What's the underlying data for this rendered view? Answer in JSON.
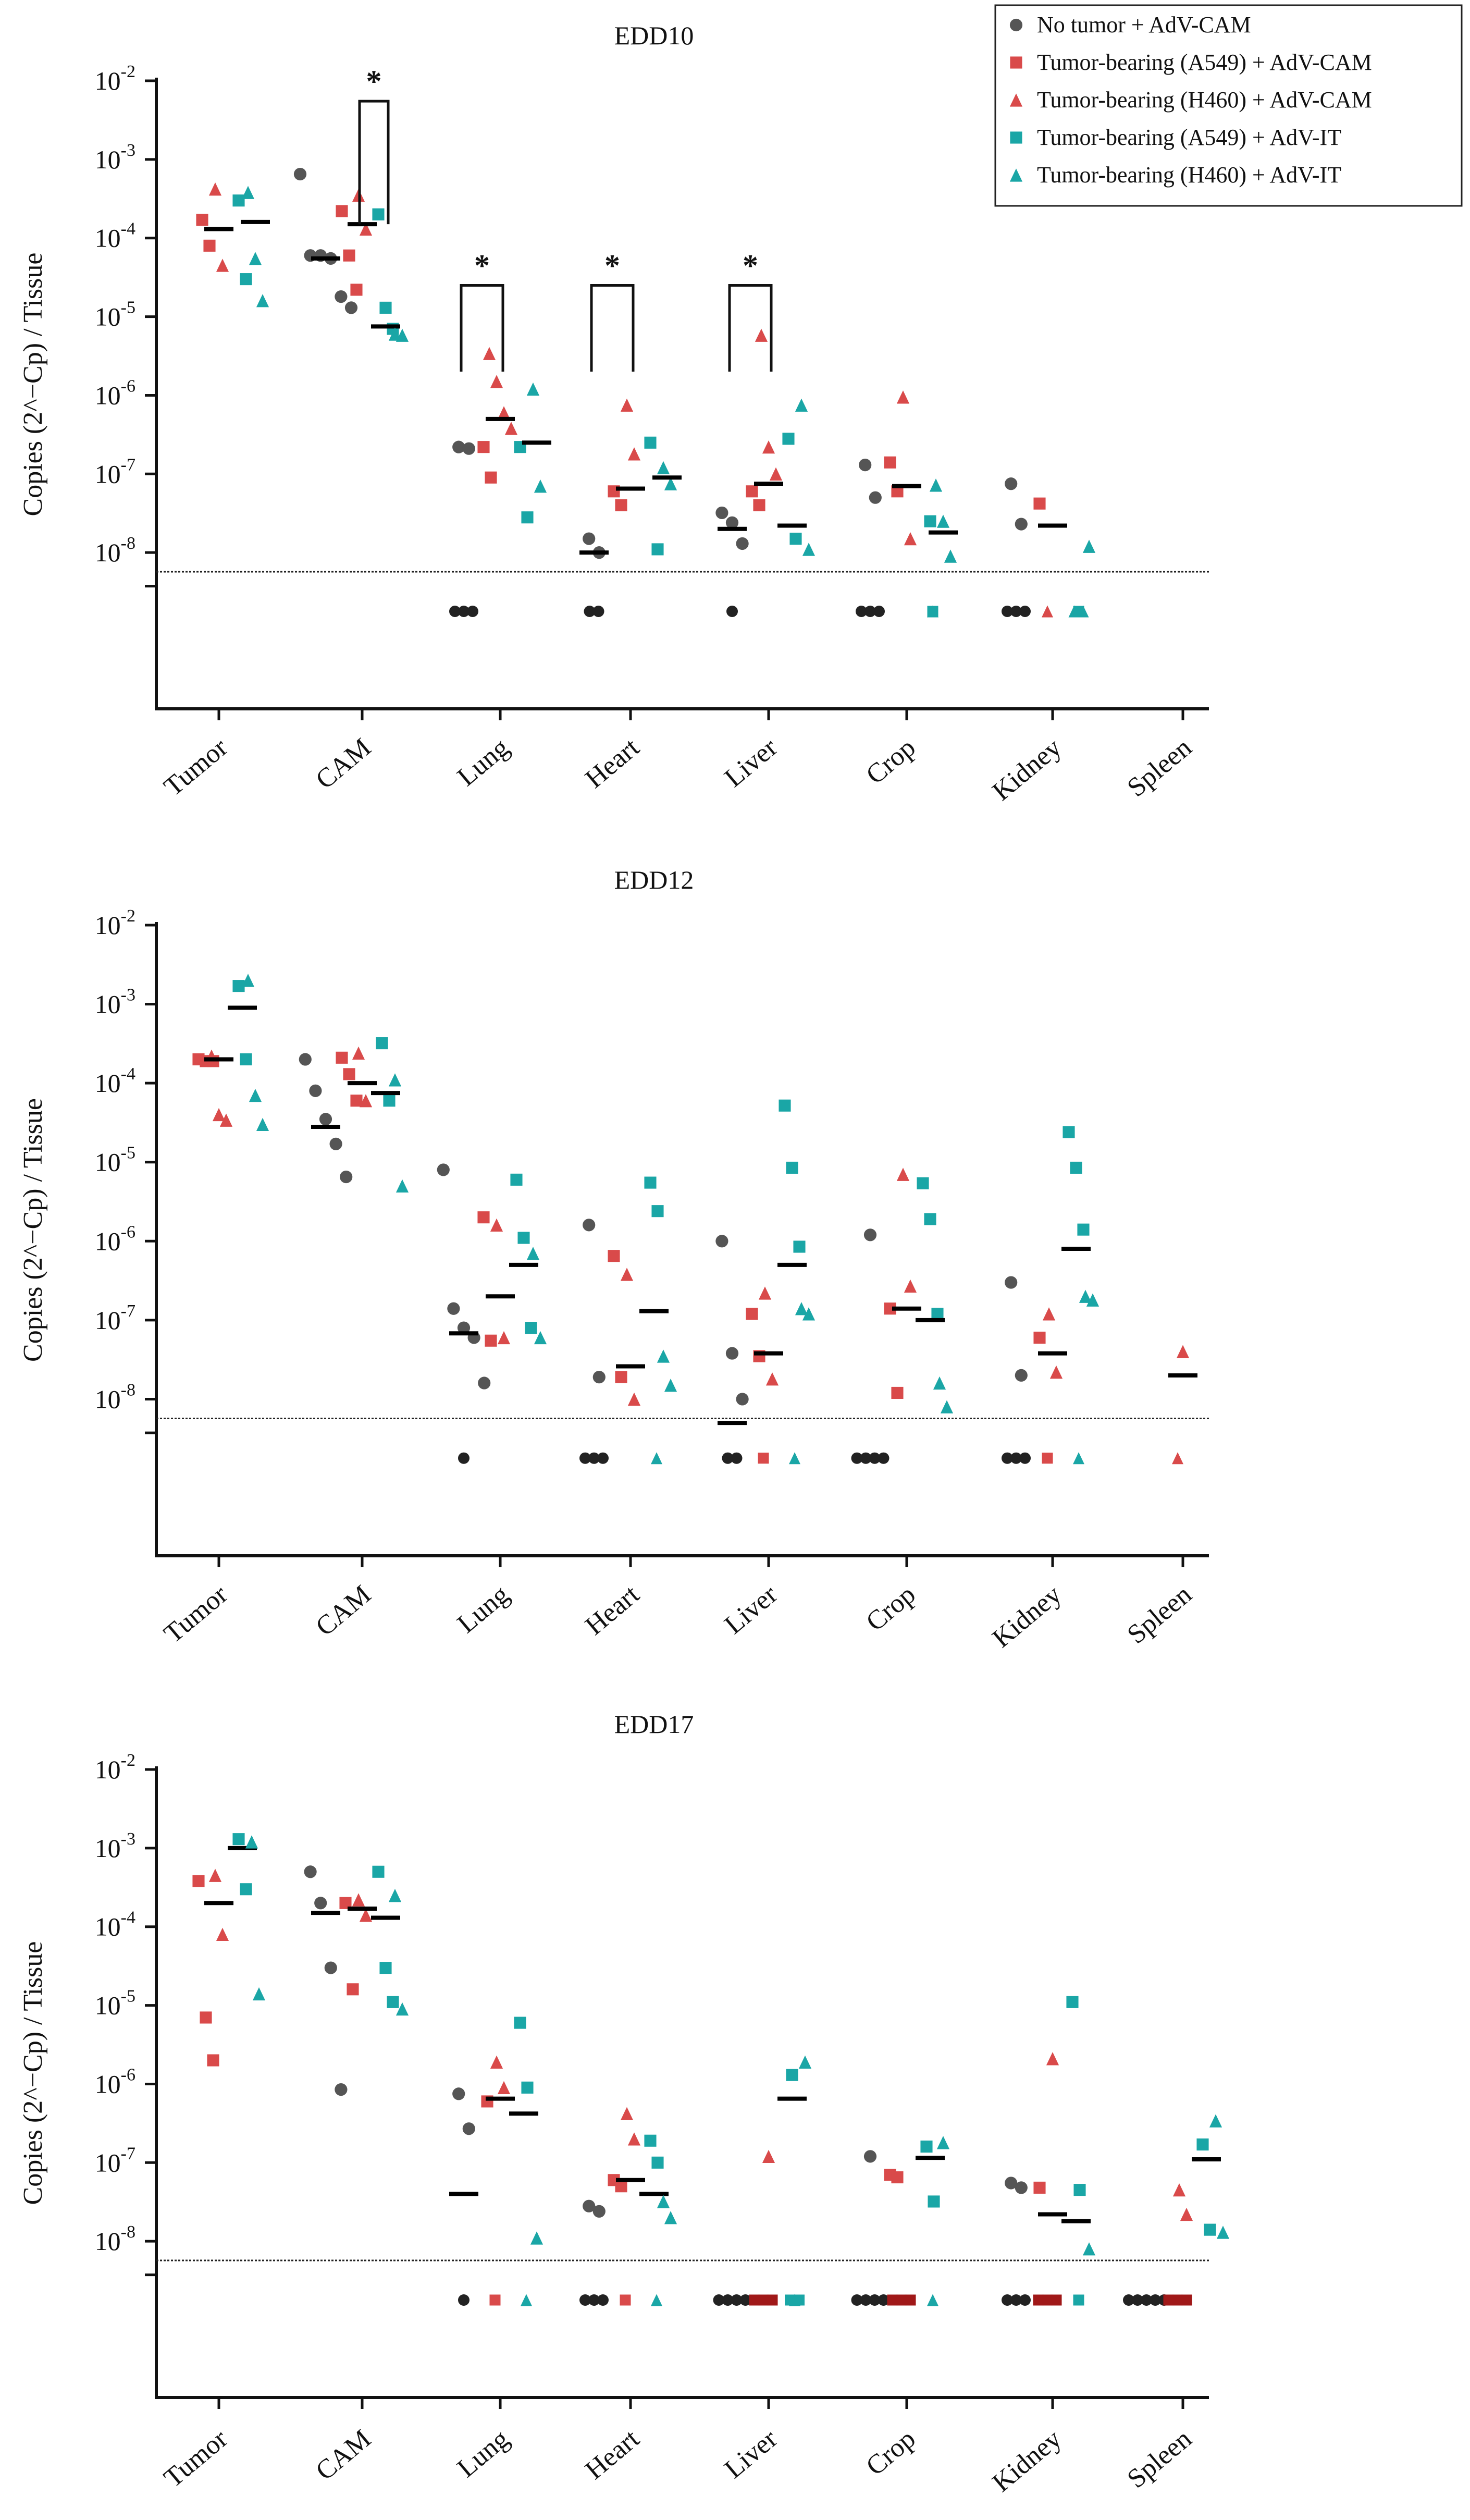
{
  "chart_data": [
    {
      "type": "scatter",
      "title": "EDD10",
      "ylabel": "Copies (2^−Cp) / Tissue",
      "yscale": "log",
      "ylim": [
        1e-09,
        0.01
      ],
      "y_tick_labels": [
        "10-2",
        "10-3",
        "10-4",
        "10-5",
        "10-6",
        "10-7",
        "10-8"
      ],
      "categories": [
        "Tumor",
        "CAM",
        "Lung",
        "Heart",
        "Liver",
        "Crop",
        "Kidney",
        "Spleen"
      ],
      "detection_limit": 5.7e-09,
      "not_detected_value": 2.5e-09,
      "series": [
        {
          "name": "No tumor + AdV-CAM",
          "key": "nt",
          "values": {
            "CAM": [
              0.00065,
              6e-05,
              6e-05,
              5.5e-05,
              1.8e-05,
              1.3e-05
            ],
            "Lung": [
              2.2e-07,
              2.1e-07
            ],
            "Heart": [
              1.5e-08,
              1e-08
            ],
            "Liver": [
              3.2e-08,
              2.4e-08,
              1.3e-08
            ],
            "Crop": [
              1.3e-07,
              5e-08
            ],
            "Kidney": [
              7.5e-08,
              2.3e-08
            ]
          },
          "nd_counts": {
            "Lung": 3,
            "Heart": 2,
            "Liver": 1,
            "Crop": 3,
            "Kidney": 3
          },
          "medians": {
            "CAM": 5.5e-05,
            "Heart": 1e-08,
            "Liver": 2e-08
          }
        },
        {
          "name": "Tumor-bearing (A549) + AdV-CAM",
          "key": "a549cam",
          "values": {
            "Tumor": [
              0.00017,
              8e-05
            ],
            "CAM": [
              0.00022,
              6e-05,
              2.2e-05
            ],
            "Lung": [
              2.2e-07,
              9e-08
            ],
            "Heart": [
              6e-08,
              4e-08
            ],
            "Liver": [
              6e-08,
              4e-08
            ],
            "Crop": [
              1.4e-07,
              6e-08
            ],
            "Kidney": [
              4.2e-08
            ]
          },
          "nd_counts": {},
          "medians": {}
        },
        {
          "name": "Tumor-bearing (H460) + AdV-CAM",
          "key": "h460cam",
          "values": {
            "Tumor": [
              0.00042,
              4.5e-05
            ],
            "CAM": [
              0.00035,
              0.00013
            ],
            "Lung": [
              3.4e-06,
              1.5e-06,
              6e-07,
              3.8e-07
            ],
            "Heart": [
              7.5e-07,
              1.8e-07
            ],
            "Liver": [
              5.8e-06,
              2.2e-07,
              1e-07
            ],
            "Crop": [
              9.5e-07,
              1.5e-08
            ],
            "Kidney": []
          },
          "nd_counts": {
            "Kidney": 1
          },
          "medians": {
            "Tumor": 0.00013,
            "CAM": 0.00015,
            "Lung": 5e-07,
            "Heart": 6.5e-08,
            "Liver": 7.5e-08,
            "Crop": 7e-08,
            "Kidney": 2.2e-08
          }
        },
        {
          "name": "Tumor-bearing (A549) + AdV-IT",
          "key": "a549it",
          "values": {
            "Tumor": [
              0.0003,
              3e-05
            ],
            "CAM": [
              0.0002,
              1.3e-05,
              7e-06
            ],
            "Lung": [
              2.2e-07,
              2.8e-08
            ],
            "Heart": [
              2.5e-07,
              1.1e-08
            ],
            "Liver": [
              2.8e-07,
              1.5e-08
            ],
            "Crop": [
              2.5e-08
            ],
            "Kidney": []
          },
          "nd_counts": {
            "Crop": 1,
            "Kidney": 1
          },
          "medians": {
            "CAM": 7.5e-06,
            "Liver": 2.2e-08
          }
        },
        {
          "name": "Tumor-bearing (H460) + AdV-IT",
          "key": "h460it",
          "values": {
            "Tumor": [
              0.00038,
              5.5e-05,
              1.6e-05
            ],
            "CAM": [
              6e-06,
              5.8e-06
            ],
            "Lung": [
              1.2e-06,
              7e-08
            ],
            "Heart": [
              1.2e-07,
              7.5e-08
            ],
            "Liver": [
              7.5e-07,
              1.1e-08
            ],
            "Crop": [
              7.2e-08,
              2.5e-08,
              9e-09
            ],
            "Kidney": [
              1.2e-08
            ]
          },
          "nd_counts": {
            "Crop": 1,
            "Kidney": 2
          },
          "medians": {
            "Tumor": 0.00016,
            "Lung": 2.5e-07,
            "Heart": 9e-08,
            "Crop": 1.8e-08
          }
        }
      ],
      "significance": [
        {
          "category": "CAM",
          "label": "*",
          "from_series": "h460cam",
          "to_series": "a549it",
          "y_low": 0.00015,
          "y_high": 0.0055
        },
        {
          "category": "Lung",
          "label": "*",
          "from_series": "nt",
          "to_series": "h460cam",
          "y_low": 2e-06,
          "y_high": 2.5e-05
        },
        {
          "category": "Heart",
          "label": "*",
          "from_series": "nt",
          "to_series": "h460cam",
          "y_low": 2e-06,
          "y_high": 2.5e-05
        },
        {
          "category": "Liver",
          "label": "*",
          "from_series": "nt",
          "to_series": "h460cam",
          "y_low": 2e-06,
          "y_high": 2.5e-05
        }
      ]
    },
    {
      "type": "scatter",
      "title": "EDD12",
      "ylabel": "Copies (2^−Cp) / Tissue",
      "yscale": "log",
      "ylim": [
        1e-09,
        0.01
      ],
      "y_tick_labels": [
        "10-2",
        "10-3",
        "10-4",
        "10-5",
        "10-6",
        "10-7",
        "10-8"
      ],
      "categories": [
        "Tumor",
        "CAM",
        "Lung",
        "Heart",
        "Liver",
        "Crop",
        "Kidney",
        "Spleen"
      ],
      "detection_limit": 5.7e-09,
      "not_detected_value": 2.5e-09,
      "series": [
        {
          "name": "No tumor + AdV-CAM",
          "key": "nt",
          "values": {
            "CAM": [
              0.0002,
              8e-05,
              3.5e-05,
              1.7e-05,
              6.5e-06
            ],
            "Lung": [
              8e-06,
              1.4e-07,
              8e-08,
              6e-08,
              1.6e-08
            ],
            "Heart": [
              1.6e-06,
              1.9e-08
            ],
            "Liver": [
              1e-06,
              3.8e-08,
              1e-08
            ],
            "Crop": [
              1.2e-06
            ],
            "Kidney": [
              3e-07,
              2e-08
            ]
          },
          "nd_counts": {
            "Lung": 1,
            "Heart": 3,
            "Liver": 2,
            "Crop": 4,
            "Kidney": 3
          },
          "medians": {
            "CAM": 2.8e-05,
            "Lung": 6.8e-08,
            "Liver": 5e-09
          }
        },
        {
          "name": "Tumor-bearing (A549) + AdV-CAM",
          "key": "a549cam",
          "values": {
            "Tumor": [
              0.0002,
              0.00019,
              0.00019
            ],
            "CAM": [
              0.00021,
              0.00013,
              6e-05
            ],
            "Lung": [
              2e-06,
              5.5e-08
            ],
            "Heart": [
              6.5e-07,
              1.9e-08
            ],
            "Liver": [
              1.2e-07,
              3.5e-08
            ],
            "Crop": [
              1.4e-07,
              1.2e-08
            ],
            "Kidney": [
              6e-08
            ]
          },
          "nd_counts": {
            "Liver": 1,
            "Kidney": 1
          },
          "medians": {}
        },
        {
          "name": "Tumor-bearing (H460) + AdV-CAM",
          "key": "h460cam",
          "values": {
            "Tumor": [
              0.00022,
              4e-05,
              3.4e-05
            ],
            "CAM": [
              0.00024,
              6e-05
            ],
            "Lung": [
              1.6e-06,
              6e-08
            ],
            "Heart": [
              3.8e-07,
              1e-08
            ],
            "Liver": [
              2.2e-07,
              1.8e-08
            ],
            "Crop": [
              7e-06,
              2.7e-07
            ],
            "Kidney": [
              1.2e-07,
              2.2e-08
            ],
            "Spleen": [
              4e-08
            ]
          },
          "nd_counts": {
            "Spleen": 1
          },
          "medians": {
            "Tumor": 0.0002,
            "CAM": 0.0001,
            "Lung": 2e-07,
            "Heart": 2.6e-08,
            "Liver": 3.8e-08,
            "Crop": 1.4e-07,
            "Kidney": 3.8e-08,
            "Spleen": 2e-08
          }
        },
        {
          "name": "Tumor-bearing (A549) + AdV-IT",
          "key": "a549it",
          "values": {
            "Tumor": [
              0.0017,
              0.0002
            ],
            "CAM": [
              0.00032,
              6e-05
            ],
            "Lung": [
              6e-06,
              1.1e-06,
              8e-08
            ],
            "Heart": [
              5.5e-06,
              2.4e-06
            ],
            "Liver": [
              5.2e-05,
              8.5e-06,
              8.5e-07
            ],
            "Crop": [
              5.4e-06,
              1.9e-06,
              1.2e-07
            ],
            "Kidney": [
              2.4e-05,
              8.5e-06,
              1.4e-06
            ]
          },
          "nd_counts": {},
          "medians": {
            "Tumor": 0.0009,
            "CAM": 7.5e-05,
            "Lung": 5e-07,
            "Heart": 1.3e-07,
            "Liver": 5e-07,
            "Crop": 1e-07,
            "Kidney": 8e-07
          }
        },
        {
          "name": "Tumor-bearing (H460) + AdV-IT",
          "key": "h460it",
          "values": {
            "Tumor": [
              0.002,
              7e-05,
              3e-05
            ],
            "CAM": [
              0.00011,
              5e-06
            ],
            "Lung": [
              7e-07,
              6e-08
            ],
            "Heart": [
              3.5e-08,
              1.5e-08
            ],
            "Liver": [
              1.4e-07,
              1.2e-07
            ],
            "Crop": [
              1.6e-08,
              8e-09
            ],
            "Kidney": [
              2e-07,
              1.8e-07
            ]
          },
          "nd_counts": {
            "Heart": 1,
            "Liver": 1,
            "Kidney": 1
          },
          "medians": {}
        }
      ],
      "significance": []
    },
    {
      "type": "scatter",
      "title": "EDD17",
      "ylabel": "Copies (2^−Cp) / Tissue",
      "yscale": "log",
      "ylim": [
        1e-09,
        0.01
      ],
      "y_tick_labels": [
        "10-2",
        "10-3",
        "10-4",
        "10-5",
        "10-6",
        "10-7",
        "10-8"
      ],
      "categories": [
        "Tumor",
        "CAM",
        "Lung",
        "Heart",
        "Liver",
        "Crop",
        "Kidney",
        "Spleen"
      ],
      "detection_limit": 5.7e-09,
      "not_detected_value": 2.5e-09,
      "series": [
        {
          "name": "No tumor + AdV-CAM",
          "key": "nt",
          "values": {
            "CAM": [
              0.0005,
              0.0002,
              3e-05,
              8.5e-07
            ],
            "Lung": [
              7.5e-07,
              2.7e-07
            ],
            "Heart": [
              2.8e-08,
              2.4e-08
            ],
            "Crop": [
              1.2e-07
            ],
            "Kidney": [
              5.5e-08,
              4.8e-08
            ]
          },
          "nd_counts": {
            "Lung": 1,
            "Heart": 3,
            "Liver": 4,
            "Crop": 4,
            "Kidney": 3,
            "Spleen": 5
          },
          "medians": {
            "CAM": 0.00015,
            "Lung": 4e-08
          }
        },
        {
          "name": "Tumor-bearing (A549) + AdV-CAM",
          "key": "a549cam",
          "values": {
            "Tumor": [
              0.00038,
              7e-06,
              2e-06
            ],
            "CAM": [
              0.0002,
              1.6e-05
            ],
            "Lung": [
              6e-07
            ],
            "Heart": [
              6e-08,
              5e-08
            ],
            "Crop": [
              7e-08,
              6.5e-08
            ],
            "Kidney": [
              4.8e-08
            ]
          },
          "nd_counts": {
            "Lung": 1,
            "Heart": 1,
            "Liver": 3,
            "Crop": 3,
            "Kidney": 3,
            "Spleen": 3
          },
          "medians": {}
        },
        {
          "name": "Tumor-bearing (H460) + AdV-CAM",
          "key": "h460cam",
          "values": {
            "Tumor": [
              0.00045,
              8e-05
            ],
            "CAM": [
              0.00022,
              0.00014
            ],
            "Lung": [
              1.9e-06,
              9e-07
            ],
            "Heart": [
              4.2e-07,
              2e-07
            ],
            "Liver": [
              1.2e-07
            ],
            "Crop": [],
            "Kidney": [
              2.1e-06
            ],
            "Spleen": [
              4.5e-08,
              2.2e-08
            ]
          },
          "nd_counts": {},
          "medians": {
            "Tumor": 0.0002,
            "CAM": 0.00017,
            "Lung": 6.5e-07,
            "Heart": 6e-08,
            "Kidney": 2.2e-08
          }
        },
        {
          "name": "Tumor-bearing (A549) + AdV-IT",
          "key": "a549it",
          "values": {
            "Tumor": [
              0.0013,
              0.0003
            ],
            "CAM": [
              0.0005,
              3e-05,
              1.1e-05
            ],
            "Lung": [
              6e-06,
              9e-07
            ],
            "Heart": [
              1.9e-07,
              1e-07
            ],
            "Liver": [
              1.3e-06
            ],
            "Crop": [
              1.6e-07,
              3.2e-08
            ],
            "Kidney": [
              1.1e-05,
              4.5e-08
            ],
            "Spleen": [
              1.7e-07,
              1.4e-08
            ]
          },
          "nd_counts": {
            "Liver": 2,
            "Kidney": 1
          },
          "medians": {
            "Tumor": 0.001,
            "CAM": 0.00013,
            "Lung": 4.2e-07,
            "Heart": 4e-08,
            "Liver": 6.5e-07,
            "Crop": 1.15e-07,
            "Kidney": 1.8e-08,
            "Spleen": 1.1e-07
          }
        },
        {
          "name": "Tumor-bearing (H460) + AdV-IT",
          "key": "h460it",
          "values": {
            "Tumor": [
              0.0012,
              1.4e-05
            ],
            "CAM": [
              0.00025,
              9e-06
            ],
            "Lung": [
              1.1e-08
            ],
            "Heart": [
              3.2e-08,
              2e-08
            ],
            "Liver": [
              1.9e-06
            ],
            "Crop": [
              1.8e-07
            ],
            "Kidney": [
              8e-09
            ],
            "Spleen": [
              3.4e-07,
              1.3e-08
            ]
          },
          "nd_counts": {
            "Lung": 1,
            "Heart": 1,
            "Liver": 1,
            "Crop": 1
          },
          "medians": {}
        }
      ],
      "significance": []
    }
  ],
  "legend": {
    "entries": [
      {
        "label": "No tumor + AdV-CAM",
        "marker": "circle",
        "color": "#555555"
      },
      {
        "label": "Tumor-bearing (A549) + AdV-CAM",
        "marker": "square",
        "color": "#d94a4a"
      },
      {
        "label": "Tumor-bearing (H460) + AdV-CAM",
        "marker": "triangle",
        "color": "#d94a4a"
      },
      {
        "label": "Tumor-bearing (A549) + AdV-IT",
        "marker": "square",
        "color": "#1aa6a6"
      },
      {
        "label": "Tumor-bearing (H460) + AdV-IT",
        "marker": "triangle",
        "color": "#1aa6a6"
      }
    ]
  },
  "colors": {
    "nt": "#555555",
    "a549cam": "#d94a4a",
    "h460cam": "#d94a4a",
    "a549it": "#1aa6a6",
    "h460it": "#1aa6a6",
    "nd_black": "#222222",
    "nd_darkred": "#a01818"
  },
  "markers": {
    "nt": "circle",
    "a549cam": "square",
    "h460cam": "triangle",
    "a549it": "square",
    "h460it": "triangle"
  }
}
